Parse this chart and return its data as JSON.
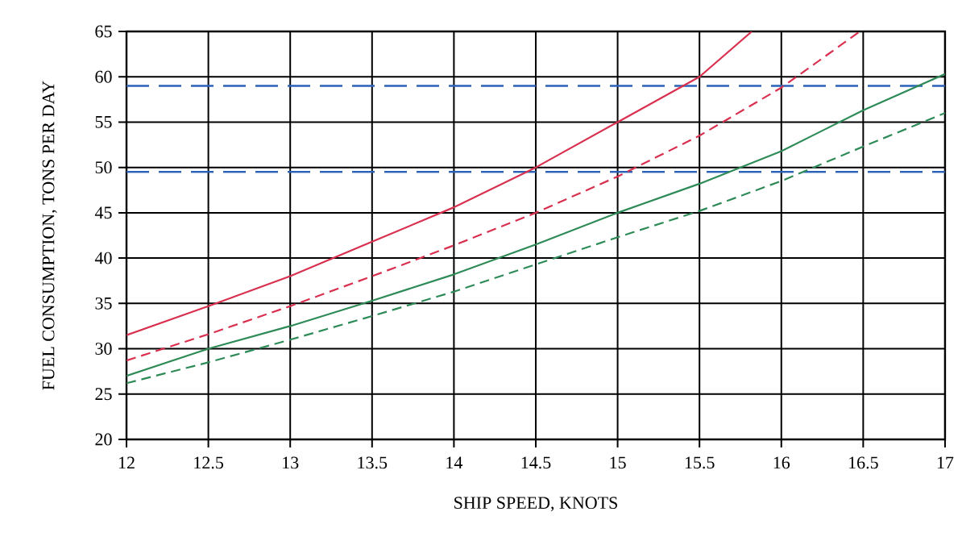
{
  "chart_data": {
    "type": "line",
    "xlabel": "SHIP SPEED, KNOTS",
    "ylabel": "FUEL CONSUMPTION, TONS PER DAY",
    "xlim": [
      12,
      17
    ],
    "ylim": [
      20,
      65
    ],
    "xticks": [
      12,
      12.5,
      13,
      13.5,
      14,
      14.5,
      15,
      15.5,
      16,
      16.5,
      17
    ],
    "yticks": [
      20,
      25,
      30,
      35,
      40,
      45,
      50,
      55,
      60,
      65
    ],
    "grid": true,
    "series": [
      {
        "color": "#d9304f",
        "line_style": "solid",
        "x": [
          12,
          12.5,
          13,
          13.5,
          14,
          14.5,
          15,
          15.5,
          15.82
        ],
        "values": [
          31.5,
          34.7,
          38,
          41.8,
          45.6,
          50,
          55,
          60,
          65
        ]
      },
      {
        "color": "#d9304f",
        "line_style": "dashed",
        "x": [
          12,
          12.5,
          13,
          13.5,
          14,
          14.5,
          15,
          15.5,
          16,
          16.48
        ],
        "values": [
          28.7,
          31.6,
          34.7,
          38,
          41.4,
          45,
          49,
          53.5,
          58.8,
          65
        ]
      },
      {
        "color": "#2e8b57",
        "line_style": "solid",
        "x": [
          12,
          12.5,
          13,
          13.5,
          14,
          14.5,
          15,
          15.5,
          16,
          16.5,
          17
        ],
        "values": [
          27,
          30,
          32.5,
          35.3,
          38.2,
          41.5,
          45,
          48.2,
          51.8,
          56.3,
          60.3
        ]
      },
      {
        "color": "#2e8b57",
        "line_style": "dashed",
        "x": [
          12,
          12.5,
          13,
          13.5,
          14,
          14.5,
          15,
          15.5,
          16,
          16.5,
          17
        ],
        "values": [
          26.2,
          28.5,
          31,
          33.6,
          36.3,
          39.3,
          42.3,
          45.2,
          48.5,
          52.3,
          56
        ]
      }
    ],
    "ref_lines": [
      {
        "axis": "y",
        "value": 59,
        "color": "#2a62b8",
        "line_style": "dashed"
      },
      {
        "axis": "y",
        "value": 49.5,
        "color": "#2a62b8",
        "line_style": "dashed"
      }
    ]
  }
}
